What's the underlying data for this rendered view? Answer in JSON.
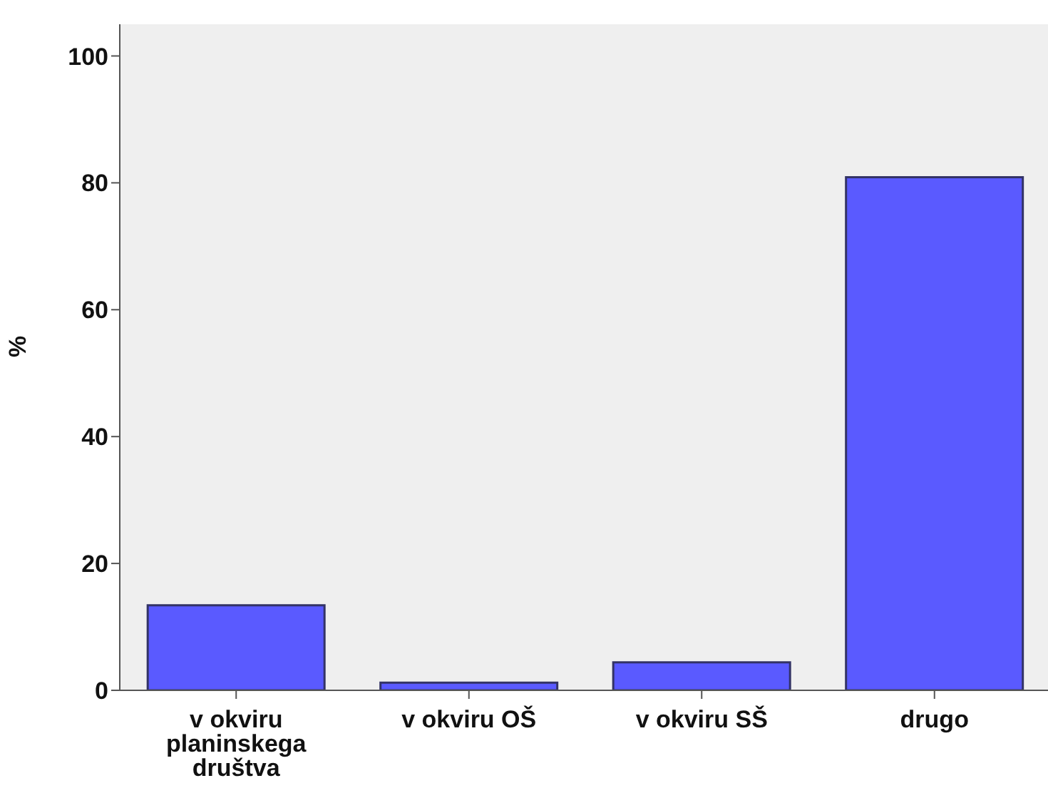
{
  "chart_data": {
    "type": "bar",
    "ylabel": "%",
    "categories": [
      "v okviru planinskega društva",
      "v okviru OŠ",
      "v okviru SŠ",
      "drugo"
    ],
    "values": [
      13.4,
      1.2,
      4.4,
      80.9
    ],
    "color": "#5a5aff",
    "ylim": [
      0,
      105
    ],
    "yticks": [
      0,
      20,
      40,
      60,
      80,
      100
    ]
  }
}
